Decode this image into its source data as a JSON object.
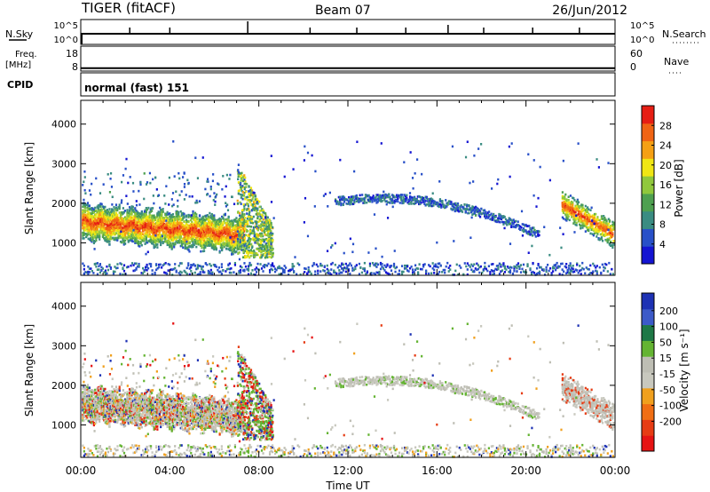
{
  "header": {
    "radar": "TIGER (fitACF)",
    "beam": "Beam 07",
    "date": "26/Jun/2012"
  },
  "strip_labels": {
    "nsky": "N.Sky",
    "freq_line1": "Freq.",
    "freq_line2": "[MHz]",
    "cpid": "CPID",
    "nsearch": "N.Search",
    "nave": "Nave",
    "cpid_value": "normal (fast) 151"
  },
  "noise_strip": {
    "left_ticks": [
      "10^5",
      "10^0"
    ],
    "right_ticks": [
      "10^5",
      "10^0"
    ],
    "spikes_hours": [
      2.2,
      4.0,
      7.5,
      10.3,
      12.4,
      14.6,
      16.5,
      18.1,
      20.3,
      22.4
    ]
  },
  "freq_strip": {
    "left_ticks": [
      "18",
      "8"
    ],
    "right_ticks": [
      "60",
      "0"
    ],
    "freq_mhz": 9.4
  },
  "time_axis": {
    "label": "Time UT",
    "ticks": [
      "00:00",
      "04:00",
      "08:00",
      "12:00",
      "16:00",
      "20:00",
      "00:00"
    ],
    "range_hours": [
      0,
      24
    ]
  },
  "chart_data": [
    {
      "type": "heatmap",
      "name": "power",
      "ylabel": "Slant Range [km]",
      "yticks": [
        1000,
        2000,
        3000,
        4000
      ],
      "ylim": [
        180,
        4600
      ],
      "xlim_hours": [
        0,
        24
      ],
      "colorbar": {
        "label": "Power [dB]",
        "ticks": [
          4,
          8,
          12,
          16,
          20,
          24,
          28
        ],
        "range": [
          0,
          32
        ],
        "colors": [
          "#1414d2",
          "#2850c8",
          "#3a8c82",
          "#4ea050",
          "#90c83c",
          "#f0e614",
          "#f5a014",
          "#f06414",
          "#e61e14"
        ]
      },
      "features": [
        {
          "from_h": 0.2,
          "to_h": 7.2,
          "range_km": [
            1000,
            1800
          ],
          "level_db": 18
        },
        {
          "from_h": 7.0,
          "to_h": 8.6,
          "range_km": [
            700,
            3000
          ],
          "level_db": 14
        },
        {
          "from_h": 11.5,
          "to_h": 20.5,
          "range_km": [
            1100,
            2300
          ],
          "level_db": 6
        },
        {
          "from_h": 21.6,
          "to_h": 24.0,
          "range_km": [
            1000,
            2200
          ],
          "level_db": 18
        },
        {
          "from_h": 0.0,
          "to_h": 24.0,
          "range_km": [
            200,
            500
          ],
          "level_db": 6
        }
      ]
    },
    {
      "type": "heatmap",
      "name": "velocity",
      "ylabel": "Slant Range [km]",
      "yticks": [
        1000,
        2000,
        3000,
        4000
      ],
      "ylim": [
        180,
        4600
      ],
      "xlim_hours": [
        0,
        24
      ],
      "colorbar": {
        "label": "Velocity [m s⁻¹]",
        "ticks": [
          200,
          100,
          50,
          15,
          -15,
          -50,
          -100,
          -200
        ],
        "colors": [
          "#1e32b4",
          "#3c5ac8",
          "#1e7846",
          "#64b432",
          "#bebeb4",
          "#c8c8be",
          "#f0a01e",
          "#f06e14",
          "#e63c14",
          "#e61414"
        ]
      }
    }
  ]
}
